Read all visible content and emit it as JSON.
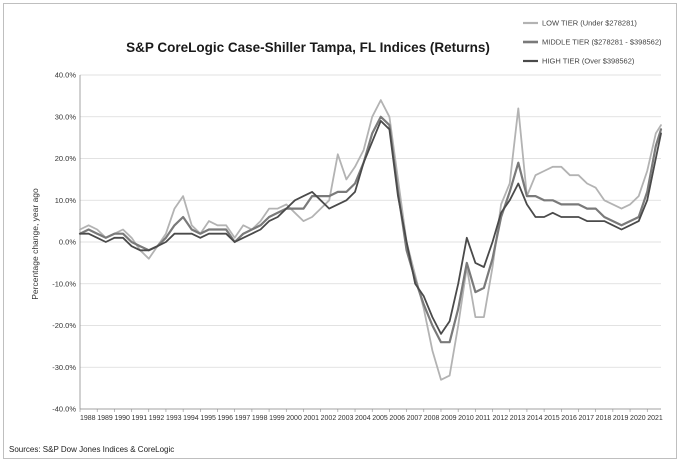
{
  "chart_data": {
    "type": "line",
    "title": "S&P CoreLogic Case-Shiller Tampa, FL Indices (Returns)",
    "ylabel": "Percentage change, year ago",
    "xlabel": "",
    "source": "Sources: S&P Dow Jones Indices & CoreLogic",
    "ylim": [
      -40,
      40
    ],
    "y_ticks": [
      "40.0%",
      "30.0%",
      "20.0%",
      "10.0%",
      "0.0%",
      "-10.0%",
      "-20.0%",
      "-30.0%",
      "-40.0%"
    ],
    "y_tick_values": [
      40,
      30,
      20,
      10,
      0,
      -10,
      -20,
      -30,
      -40
    ],
    "x_ticks": [
      "1988",
      "1989",
      "1990",
      "1991",
      "1992",
      "1993",
      "1994",
      "1995",
      "1996",
      "1997",
      "1998",
      "1999",
      "2000",
      "2001",
      "2002",
      "2003",
      "2004",
      "2005",
      "2006",
      "2007",
      "2008",
      "2009",
      "2010",
      "2011",
      "2012",
      "2013",
      "2014",
      "2015",
      "2016",
      "2017",
      "2018",
      "2019",
      "2020",
      "2021"
    ],
    "xlim": [
      1988,
      2021.8
    ],
    "grid": "horizontal",
    "legend_position": "top-right",
    "x": [
      1988.0,
      1988.5,
      1989.0,
      1989.5,
      1990.0,
      1990.5,
      1991.0,
      1991.5,
      1992.0,
      1992.5,
      1993.0,
      1993.5,
      1994.0,
      1994.5,
      1995.0,
      1995.5,
      1996.0,
      1996.5,
      1997.0,
      1997.5,
      1998.0,
      1998.5,
      1999.0,
      1999.5,
      2000.0,
      2000.5,
      2001.0,
      2001.5,
      2002.0,
      2002.5,
      2003.0,
      2003.5,
      2004.0,
      2004.5,
      2005.0,
      2005.5,
      2006.0,
      2006.5,
      2007.0,
      2007.5,
      2008.0,
      2008.5,
      2009.0,
      2009.5,
      2010.0,
      2010.5,
      2011.0,
      2011.5,
      2012.0,
      2012.5,
      2013.0,
      2013.5,
      2014.0,
      2014.5,
      2015.0,
      2015.5,
      2016.0,
      2016.5,
      2017.0,
      2017.5,
      2018.0,
      2018.5,
      2019.0,
      2019.5,
      2020.0,
      2020.5,
      2021.0,
      2021.5,
      2021.8
    ],
    "series": [
      {
        "name": "LOW TIER (Under $278281)",
        "color": "#b3b3b3",
        "width": 1.8,
        "values": [
          3,
          4,
          3,
          1,
          2,
          3,
          1,
          -2,
          -4,
          -1,
          2,
          8,
          11,
          4,
          2,
          5,
          4,
          4,
          1,
          4,
          3,
          5,
          8,
          8,
          9,
          7,
          5,
          6,
          8,
          10,
          21,
          15,
          18,
          22,
          30,
          34,
          30,
          15,
          0,
          -8,
          -16,
          -26,
          -33,
          -32,
          -20,
          -6,
          -18,
          -18,
          -6,
          9,
          14,
          32,
          11,
          16,
          17,
          18,
          18,
          16,
          16,
          14,
          13,
          10,
          9,
          8,
          9,
          11,
          17,
          26,
          28
        ]
      },
      {
        "name": "MIDDLE TIER ($278281 - $398562)",
        "color": "#7a7a7a",
        "width": 2.2,
        "values": [
          2,
          3,
          2,
          1,
          2,
          2,
          0,
          -1,
          -2,
          -1,
          1,
          4,
          6,
          3,
          2,
          3,
          3,
          3,
          0,
          2,
          3,
          4,
          6,
          7,
          8,
          8,
          8,
          11,
          11,
          11,
          12,
          12,
          14,
          19,
          26,
          30,
          28,
          12,
          -2,
          -9,
          -15,
          -20,
          -24,
          -24,
          -16,
          -5,
          -12,
          -11,
          -4,
          6,
          12,
          19,
          11,
          11,
          10,
          10,
          9,
          9,
          9,
          8,
          8,
          6,
          5,
          4,
          5,
          6,
          12,
          23,
          27
        ]
      },
      {
        "name": "HIGH TIER (Over $398562)",
        "color": "#4a4a4a",
        "width": 1.8,
        "values": [
          2,
          2,
          1,
          0,
          1,
          1,
          -1,
          -2,
          -2,
          -1,
          0,
          2,
          2,
          2,
          1,
          2,
          2,
          2,
          0,
          1,
          2,
          3,
          5,
          6,
          8,
          10,
          11,
          12,
          10,
          8,
          9,
          10,
          12,
          19,
          24,
          29,
          27,
          11,
          0,
          -10,
          -13,
          -18,
          -22,
          -19,
          -10,
          1,
          -5,
          -6,
          0,
          7,
          10,
          14,
          9,
          6,
          6,
          7,
          6,
          6,
          6,
          5,
          5,
          5,
          4,
          3,
          4,
          5,
          10,
          20,
          26
        ]
      }
    ]
  }
}
